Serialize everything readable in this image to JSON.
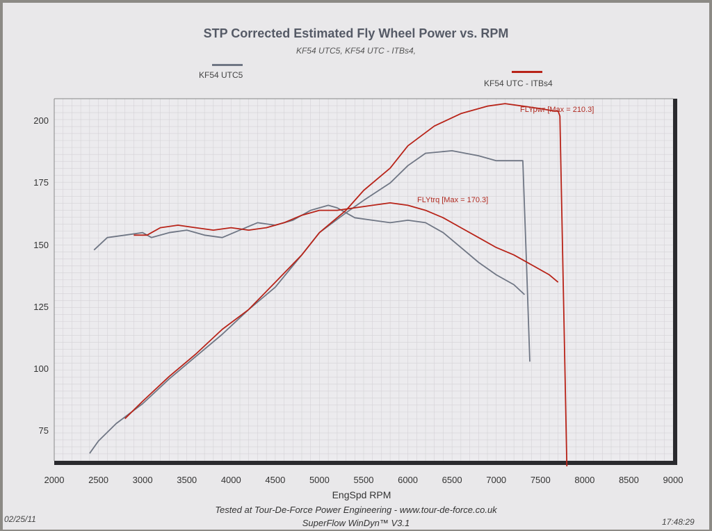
{
  "header": {
    "title": "STP Corrected Estimated Fly Wheel Power vs. RPM",
    "subtitle": "KF54 UTC5, KF54 UTC - ITBs4,"
  },
  "footer": {
    "line1": "Tested at Tour-De-Force Power Engineering - www.tour-de-force.co.uk",
    "line2": "SuperFlow WinDyn™ V3.1",
    "date": "02/25/11",
    "time": "17:48:29"
  },
  "colors": {
    "series_gray": "#6f7684",
    "series_red": "#b82318",
    "grid": "#d4d2d6",
    "frame": "#2a2a2e"
  },
  "chart_data": {
    "type": "line",
    "title": "STP Corrected Estimated Fly Wheel Power vs. RPM",
    "xlabel": "EngSpd RPM",
    "ylabel": "",
    "xlim": [
      2000,
      9000
    ],
    "ylim": [
      63,
      209
    ],
    "x_ticks": [
      2000,
      2500,
      3000,
      3500,
      4000,
      4500,
      5000,
      5500,
      6000,
      6500,
      7000,
      7500,
      8000,
      8500,
      9000
    ],
    "y_ticks": [
      75,
      100,
      125,
      150,
      175,
      200
    ],
    "grid": true,
    "legend": [
      {
        "name": "KF54 UTC5",
        "color": "#6f7684"
      },
      {
        "name": "KF54 UTC - ITBs4",
        "color": "#b82318"
      }
    ],
    "annotations": [
      {
        "text": "FLYpwr [Max = 210.3]",
        "series": "KF54 UTC - ITBs4"
      },
      {
        "text": "FLYtrq [Max = 170.3]",
        "series": "KF54 UTC - ITBs4"
      }
    ],
    "series": [
      {
        "name": "KF54 UTC5 FLYpwr",
        "color": "#6f7684",
        "x": [
          2400,
          2500,
          2700,
          3000,
          3300,
          3600,
          3900,
          4200,
          4500,
          4800,
          5000,
          5300,
          5500,
          5800,
          6000,
          6200,
          6500,
          6800,
          7000,
          7200,
          7300,
          7340,
          7380
        ],
        "y": [
          66,
          71,
          78,
          86,
          96,
          105,
          114,
          124,
          133,
          146,
          155,
          163,
          168,
          175,
          182,
          187,
          188,
          186,
          184,
          184,
          184,
          145,
          103
        ]
      },
      {
        "name": "KF54 UTC5 FLYtrq",
        "color": "#6f7684",
        "x": [
          2450,
          2600,
          2800,
          3000,
          3100,
          3300,
          3500,
          3700,
          3900,
          4100,
          4300,
          4500,
          4700,
          4900,
          5100,
          5200,
          5400,
          5600,
          5800,
          6000,
          6200,
          6400,
          6600,
          6800,
          7000,
          7200,
          7320
        ],
        "y": [
          148,
          153,
          154,
          155,
          153,
          155,
          156,
          154,
          153,
          156,
          159,
          158,
          160,
          164,
          166,
          165,
          161,
          160,
          159,
          160,
          159,
          155,
          149,
          143,
          138,
          134,
          130
        ]
      },
      {
        "name": "KF54 UTC - ITBs4 FLYpwr",
        "color": "#b82318",
        "x": [
          2800,
          3000,
          3300,
          3600,
          3900,
          4200,
          4500,
          4800,
          5000,
          5300,
          5500,
          5800,
          6000,
          6300,
          6600,
          6900,
          7100,
          7300,
          7500,
          7650,
          7700,
          7720
        ],
        "y": [
          80,
          87,
          97,
          106,
          116,
          124,
          135,
          146,
          155,
          164,
          172,
          181,
          190,
          198,
          203,
          206,
          207,
          206,
          205,
          204,
          204,
          202
        ]
      },
      {
        "name": "KF54 UTC - ITBs4 FLYtrq",
        "color": "#b82318",
        "x": [
          2900,
          3050,
          3200,
          3400,
          3600,
          3800,
          4000,
          4200,
          4400,
          4600,
          4800,
          5000,
          5200,
          5400,
          5600,
          5800,
          6000,
          6200,
          6400,
          6600,
          6800,
          7000,
          7200,
          7400,
          7600,
          7700
        ],
        "y": [
          154,
          154,
          157,
          158,
          157,
          156,
          157,
          156,
          157,
          159,
          162,
          164,
          164,
          165,
          166,
          167,
          166,
          164,
          161,
          157,
          153,
          149,
          146,
          142,
          138,
          135
        ]
      }
    ]
  }
}
